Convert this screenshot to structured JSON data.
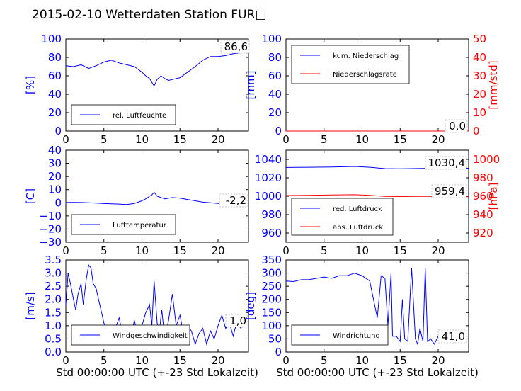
{
  "title": "2015-02-10 Wetterdaten Station FUR□",
  "colors": {
    "blue": "#0000ff",
    "red": "#ff0000",
    "lightblue": "#7f7fff"
  },
  "chart_data": [
    {
      "type": "line",
      "ylabel": "[%]",
      "xlim": [
        0,
        24
      ],
      "ylim": [
        0,
        100
      ],
      "xticks": [
        "0",
        "5",
        "10",
        "15",
        "20"
      ],
      "yticks": [
        "0",
        "20",
        "40",
        "60",
        "80",
        "100"
      ],
      "legend": {
        "placement": "lower-left",
        "entries": [
          "rel. Luftfeuchte"
        ]
      },
      "annotation": "86,6",
      "series": [
        {
          "name": "rel. Luftfeuchte",
          "color": "#0000ff",
          "x": [
            0,
            1,
            2,
            3,
            4,
            5,
            6,
            7,
            8,
            9,
            9.5,
            10,
            10.5,
            11,
            11.3,
            11.6,
            12,
            12.5,
            13,
            13.5,
            14,
            15,
            16,
            17,
            18,
            19,
            20,
            21,
            22,
            23,
            23.7
          ],
          "y": [
            71,
            70,
            72,
            68,
            71,
            75,
            77,
            74,
            72,
            70,
            67,
            64,
            60,
            57,
            53,
            49,
            56,
            60,
            57,
            55,
            56,
            58,
            64,
            70,
            77,
            81,
            81,
            82,
            84,
            85,
            87
          ]
        }
      ]
    },
    {
      "type": "line",
      "ylabel": "[mm]",
      "y2label": "[mm/std]",
      "xlim": [
        0,
        24
      ],
      "ylim": [
        0,
        100
      ],
      "y2lim": [
        0,
        50
      ],
      "xticks": [
        "0",
        "5",
        "10",
        "15",
        "20"
      ],
      "yticks": [
        "0",
        "20",
        "40",
        "60",
        "80",
        "100"
      ],
      "y2ticks": [
        "0",
        "10",
        "20",
        "30",
        "40",
        "50"
      ],
      "legend": {
        "placement": "upper-left",
        "entries": [
          "kum. Niederschlag",
          "Niederschlagsrate"
        ]
      },
      "annotation": "0,0",
      "series": [
        {
          "name": "kum. Niederschlag",
          "color": "#0000ff",
          "x": [
            0,
            24
          ],
          "y": [
            0,
            0
          ]
        },
        {
          "name": "Niederschlagsrate",
          "color": "#ff0000",
          "x": [
            0,
            24
          ],
          "y": [
            0,
            0
          ],
          "axis": "right"
        }
      ]
    },
    {
      "type": "line",
      "ylabel": "[C]",
      "xlim": [
        0,
        24
      ],
      "ylim": [
        -30,
        40
      ],
      "xticks": [
        "0",
        "5",
        "10",
        "15",
        "20"
      ],
      "yticks": [
        "−30",
        "−20",
        "−10",
        "0",
        "10",
        "20",
        "30",
        "40"
      ],
      "legend": {
        "placement": "lower-left",
        "entries": [
          "Lufttemperatur"
        ]
      },
      "annotation": "-2,2",
      "series": [
        {
          "name": "Lufttemperatur",
          "color": "#0000ff",
          "x": [
            0,
            1,
            2,
            3,
            4,
            5,
            6,
            7,
            8,
            9,
            10,
            10.5,
            11,
            11.3,
            11.6,
            12,
            12.5,
            13,
            14,
            15,
            16,
            17,
            18,
            19,
            20,
            21,
            22,
            23,
            23.7
          ],
          "y": [
            0.2,
            0.3,
            0.2,
            0,
            -0.3,
            -0.6,
            -0.8,
            -1,
            -1.3,
            -0.5,
            1.5,
            3,
            5,
            6,
            8,
            5,
            4,
            3,
            4,
            3.5,
            2.5,
            1.5,
            0.5,
            0,
            -0.5,
            -1,
            -1.5,
            -2,
            -2.2
          ]
        }
      ]
    },
    {
      "type": "line",
      "y2label": "[hPa]",
      "xlim": [
        0,
        24
      ],
      "ylim": [
        950,
        1050
      ],
      "y2lim": [
        910,
        1010
      ],
      "xticks": [
        "0",
        "5",
        "10",
        "15",
        "20"
      ],
      "yticks": [
        "960",
        "980",
        "1000",
        "1020",
        "1040"
      ],
      "y2ticks": [
        "920",
        "940",
        "960",
        "980",
        "1000"
      ],
      "legend": {
        "placement": "lower-left",
        "entries": [
          "red. Luftdruck",
          "abs. Luftdruck"
        ]
      },
      "annotations": [
        "1030,4",
        "959,4"
      ],
      "series": [
        {
          "name": "red. Luftdruck",
          "color": "#0000ff",
          "x": [
            0,
            3,
            6,
            9,
            11,
            13,
            15,
            18,
            21,
            24
          ],
          "y": [
            1031.2,
            1031.5,
            1031.8,
            1032.3,
            1031.5,
            1030.0,
            1029.8,
            1030.2,
            1030.4,
            1030.4
          ]
        },
        {
          "name": "abs. Luftdruck",
          "color": "#ff0000",
          "axis": "right",
          "x": [
            0,
            3,
            6,
            9,
            11,
            13,
            15,
            18,
            21,
            24
          ],
          "y": [
            960.8,
            961.0,
            961.3,
            961.6,
            961.0,
            959.8,
            959.6,
            959.9,
            959.4,
            959.4
          ]
        }
      ]
    },
    {
      "type": "line",
      "ylabel": "[m/s]",
      "xlabel": "Std 00:00:00 UTC (+-23 Std Lokalzeit)",
      "xlim": [
        0,
        24
      ],
      "ylim": [
        0,
        3.5
      ],
      "xticks": [
        "0",
        "5",
        "10",
        "15",
        "20"
      ],
      "yticks": [
        "0.0",
        "0.5",
        "1.0",
        "1.5",
        "2.0",
        "2.5",
        "3.0",
        "3.5"
      ],
      "legend": {
        "placement": "lower-left",
        "entries": [
          "Windgeschwindigkeit"
        ]
      },
      "annotation": "1,0",
      "series": [
        {
          "name": "Windgeschwindigkeit",
          "color": "#0000ff",
          "x": [
            0,
            0.3,
            0.6,
            1,
            1.3,
            1.6,
            2,
            2.3,
            2.7,
            3,
            3.3,
            3.6,
            4,
            4.3,
            4.7,
            5,
            5.5,
            6,
            6.5,
            7,
            7.5,
            8,
            8.5,
            9,
            9.5,
            10,
            10.5,
            11,
            11.3,
            11.6,
            12,
            12.3,
            12.6,
            13,
            13.5,
            14,
            14.5,
            15,
            15.5,
            16,
            16.5,
            17,
            17.5,
            18,
            18.5,
            19,
            19.5,
            20,
            20.5,
            21,
            21.5,
            22,
            22.5,
            23,
            23.5,
            24
          ],
          "y": [
            1.8,
            3.0,
            2.6,
            2.0,
            1.6,
            2.2,
            2.6,
            1.8,
            2.8,
            3.3,
            3.2,
            2.6,
            2.4,
            2.0,
            1.5,
            1.1,
            0.8,
            1.0,
            0.9,
            1.3,
            0.6,
            1.0,
            0.5,
            1.2,
            0.6,
            1.0,
            1.5,
            1.8,
            1.0,
            2.7,
            1.1,
            0.8,
            1.6,
            0.5,
            1.2,
            2.2,
            1.0,
            1.4,
            0.6,
            1.0,
            0.8,
            0.3,
            0.7,
            0.9,
            0.3,
            0.8,
            0.5,
            1.0,
            1.4,
            0.9,
            1.1,
            0.6,
            1.2,
            0.9,
            1.3,
            1.0
          ]
        }
      ]
    },
    {
      "type": "line",
      "ylabel": "[deg]",
      "xlabel": "Std 00:00:00 UTC (+-23 Std Lokalzeit)",
      "xlim": [
        0,
        24
      ],
      "ylim": [
        0,
        350
      ],
      "xticks": [
        "0",
        "5",
        "10",
        "15",
        "20"
      ],
      "yticks": [
        "0",
        "50",
        "100",
        "150",
        "200",
        "250",
        "300",
        "350"
      ],
      "legend": {
        "placement": "lower-left",
        "entries": [
          "Windrichtung"
        ]
      },
      "annotation": "41,0",
      "series": [
        {
          "name": "Windrichtung",
          "color": "#0000ff",
          "x": [
            0,
            1,
            2,
            3,
            4,
            5,
            6,
            7,
            8,
            9,
            10,
            11,
            11.5,
            12,
            12.5,
            13,
            13.4,
            13.8,
            14,
            14.5,
            15,
            15.3,
            15.6,
            16,
            16.5,
            17,
            17.3,
            17.6,
            18,
            18.3,
            18.6,
            19,
            19.5,
            20,
            21,
            22,
            23,
            23.7
          ],
          "y": [
            270,
            268,
            275,
            275,
            280,
            285,
            280,
            290,
            290,
            300,
            290,
            270,
            200,
            130,
            290,
            280,
            100,
            300,
            60,
            60,
            40,
            200,
            50,
            40,
            320,
            50,
            30,
            90,
            40,
            320,
            40,
            50,
            30,
            60,
            50,
            45,
            45,
            41
          ]
        }
      ]
    }
  ]
}
